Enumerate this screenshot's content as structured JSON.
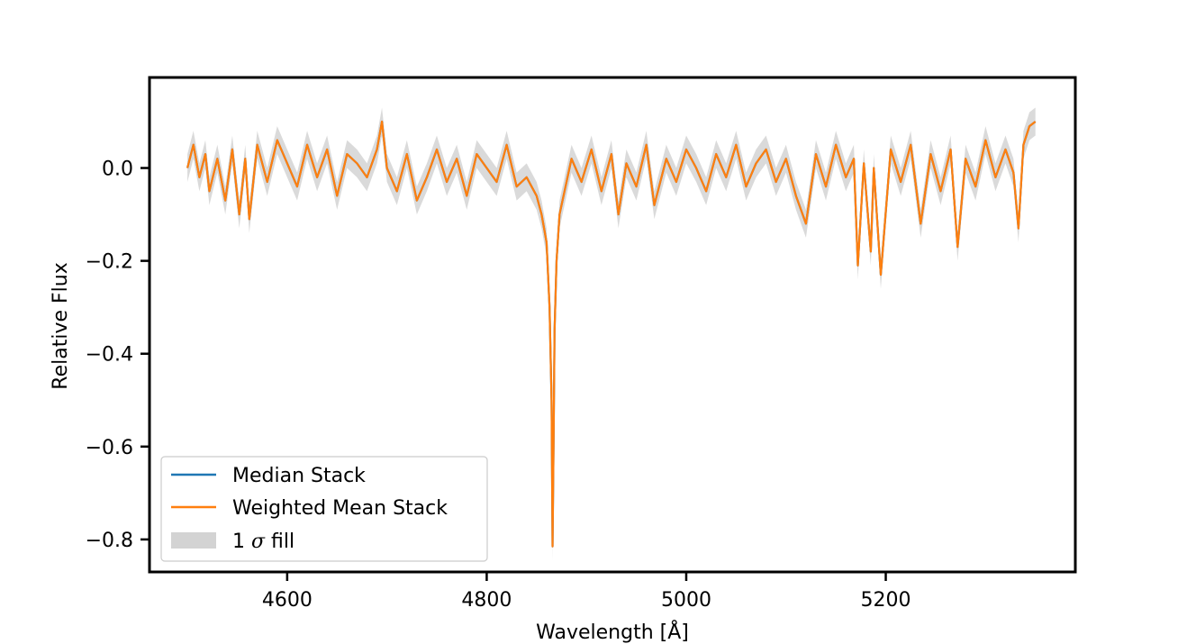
{
  "chart_data": {
    "type": "line",
    "title": "",
    "xlabel": "Wavelength [Å]",
    "ylabel": "Relative Flux",
    "xlim": [
      4462,
      5390
    ],
    "ylim": [
      -0.87,
      0.195
    ],
    "xticks": [
      4600,
      4800,
      5000,
      5200
    ],
    "xtick_labels": [
      "4600",
      "4800",
      "5000",
      "5200"
    ],
    "yticks": [
      0.0,
      -0.2,
      -0.4,
      -0.6,
      -0.8
    ],
    "ytick_labels": [
      "0.0",
      "−0.2",
      "−0.4",
      "−0.6",
      "−0.8"
    ],
    "grid": false,
    "legend_position": "lower-left",
    "series": [
      {
        "name": "Median Stack",
        "color": "#1f77b4",
        "x": [
          4500,
          4506,
          4512,
          4518,
          4522,
          4530,
          4538,
          4545,
          4552,
          4558,
          4562,
          4570,
          4580,
          4590,
          4600,
          4610,
          4620,
          4630,
          4640,
          4650,
          4660,
          4670,
          4680,
          4690,
          4695,
          4700,
          4710,
          4720,
          4730,
          4740,
          4750,
          4760,
          4770,
          4780,
          4790,
          4800,
          4810,
          4820,
          4830,
          4840,
          4850,
          4855,
          4860,
          4863,
          4865,
          4866,
          4867,
          4868,
          4870,
          4873,
          4878,
          4885,
          4895,
          4905,
          4915,
          4925,
          4932,
          4940,
          4950,
          4960,
          4968,
          4980,
          4990,
          5000,
          5010,
          5020,
          5030,
          5040,
          5050,
          5060,
          5070,
          5080,
          5090,
          5100,
          5110,
          5120,
          5130,
          5140,
          5150,
          5160,
          5168,
          5172,
          5178,
          5185,
          5188,
          5195,
          5205,
          5215,
          5225,
          5235,
          5245,
          5255,
          5265,
          5272,
          5280,
          5290,
          5300,
          5310,
          5320,
          5328,
          5333,
          5338,
          5344,
          5350
        ],
        "y": [
          0.0,
          0.05,
          -0.02,
          0.03,
          -0.05,
          0.02,
          -0.07,
          0.04,
          -0.1,
          0.02,
          -0.11,
          0.05,
          -0.03,
          0.06,
          0.01,
          -0.04,
          0.05,
          -0.02,
          0.04,
          -0.06,
          0.03,
          0.01,
          -0.02,
          0.04,
          0.1,
          0.0,
          -0.05,
          0.03,
          -0.07,
          -0.02,
          0.04,
          -0.03,
          0.02,
          -0.06,
          0.03,
          0.0,
          -0.03,
          0.05,
          -0.04,
          -0.02,
          -0.06,
          -0.1,
          -0.16,
          -0.3,
          -0.5,
          -0.815,
          -0.6,
          -0.35,
          -0.2,
          -0.1,
          -0.05,
          0.02,
          -0.03,
          0.04,
          -0.05,
          0.03,
          -0.1,
          0.01,
          -0.04,
          0.05,
          -0.08,
          0.02,
          -0.03,
          0.04,
          0.0,
          -0.05,
          0.03,
          -0.02,
          0.05,
          -0.04,
          0.01,
          0.04,
          -0.03,
          0.02,
          -0.06,
          -0.12,
          0.03,
          -0.04,
          0.05,
          -0.02,
          0.02,
          -0.21,
          0.01,
          -0.18,
          0.0,
          -0.23,
          0.04,
          -0.03,
          0.05,
          -0.12,
          0.03,
          -0.05,
          0.04,
          -0.17,
          0.02,
          -0.04,
          0.06,
          -0.02,
          0.04,
          -0.01,
          -0.13,
          0.05,
          0.09,
          0.1
        ]
      },
      {
        "name": "Weighted Mean Stack",
        "color": "#ff7f0e",
        "x": [
          4500,
          4506,
          4512,
          4518,
          4522,
          4530,
          4538,
          4545,
          4552,
          4558,
          4562,
          4570,
          4580,
          4590,
          4600,
          4610,
          4620,
          4630,
          4640,
          4650,
          4660,
          4670,
          4680,
          4690,
          4695,
          4700,
          4710,
          4720,
          4730,
          4740,
          4750,
          4760,
          4770,
          4780,
          4790,
          4800,
          4810,
          4820,
          4830,
          4840,
          4850,
          4855,
          4860,
          4863,
          4865,
          4866,
          4867,
          4868,
          4870,
          4873,
          4878,
          4885,
          4895,
          4905,
          4915,
          4925,
          4932,
          4940,
          4950,
          4960,
          4968,
          4980,
          4990,
          5000,
          5010,
          5020,
          5030,
          5040,
          5050,
          5060,
          5070,
          5080,
          5090,
          5100,
          5110,
          5120,
          5130,
          5140,
          5150,
          5160,
          5168,
          5172,
          5178,
          5185,
          5188,
          5195,
          5205,
          5215,
          5225,
          5235,
          5245,
          5255,
          5265,
          5272,
          5280,
          5290,
          5300,
          5310,
          5320,
          5328,
          5333,
          5338,
          5344,
          5350
        ],
        "y": [
          0.0,
          0.05,
          -0.02,
          0.03,
          -0.05,
          0.02,
          -0.07,
          0.04,
          -0.1,
          0.02,
          -0.11,
          0.05,
          -0.03,
          0.06,
          0.01,
          -0.04,
          0.05,
          -0.02,
          0.04,
          -0.06,
          0.03,
          0.01,
          -0.02,
          0.04,
          0.1,
          0.0,
          -0.05,
          0.03,
          -0.07,
          -0.02,
          0.04,
          -0.03,
          0.02,
          -0.06,
          0.03,
          0.0,
          -0.03,
          0.05,
          -0.04,
          -0.02,
          -0.06,
          -0.1,
          -0.16,
          -0.3,
          -0.5,
          -0.815,
          -0.6,
          -0.35,
          -0.2,
          -0.1,
          -0.05,
          0.02,
          -0.03,
          0.04,
          -0.05,
          0.03,
          -0.1,
          0.01,
          -0.04,
          0.05,
          -0.08,
          0.02,
          -0.03,
          0.04,
          0.0,
          -0.05,
          0.03,
          -0.02,
          0.05,
          -0.04,
          0.01,
          0.04,
          -0.03,
          0.02,
          -0.06,
          -0.12,
          0.03,
          -0.04,
          0.05,
          -0.02,
          0.02,
          -0.21,
          0.01,
          -0.18,
          0.0,
          -0.23,
          0.04,
          -0.03,
          0.05,
          -0.12,
          0.03,
          -0.05,
          0.04,
          -0.17,
          0.02,
          -0.04,
          0.06,
          -0.02,
          0.04,
          -0.01,
          -0.13,
          0.05,
          0.09,
          0.1
        ]
      }
    ],
    "fill": {
      "name": "1 σ fill",
      "color": "#d3d3d3",
      "halfwidth": 0.03
    },
    "legend": {
      "entries": [
        {
          "label": "Median Stack",
          "kind": "line",
          "color": "#1f77b4"
        },
        {
          "label": "Weighted Mean Stack",
          "kind": "line",
          "color": "#ff7f0e"
        },
        {
          "label_prefix": "1 ",
          "label_symbol": "σ",
          "label_suffix": " fill",
          "kind": "patch",
          "color": "#d3d3d3"
        }
      ]
    }
  }
}
